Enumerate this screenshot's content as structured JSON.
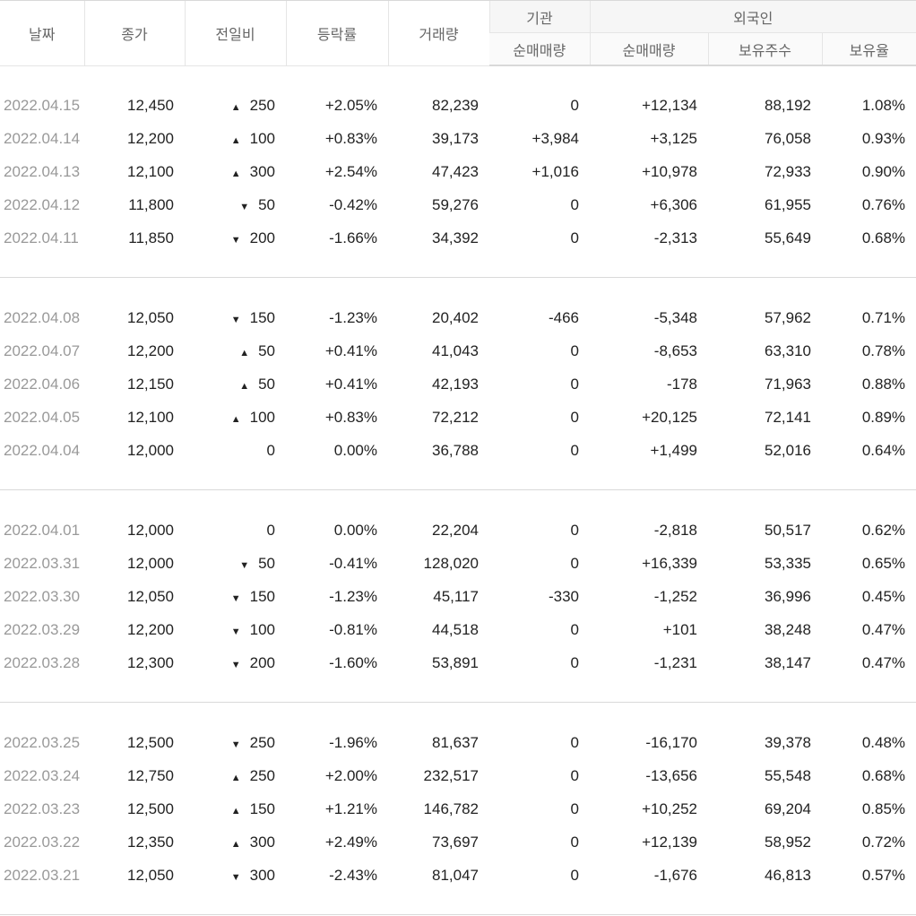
{
  "headers": {
    "date": "날짜",
    "close": "종가",
    "change": "전일비",
    "rate": "등락률",
    "volume": "거래량",
    "inst_group": "기관",
    "foreign_group": "외국인",
    "inst_net": "순매매량",
    "foreign_net": "순매매량",
    "foreign_holdings": "보유주수",
    "foreign_ratio": "보유율"
  },
  "colors": {
    "up": "#d0021b",
    "down": "#1c5fd1"
  },
  "groups": [
    {
      "rows": [
        {
          "date": "2022.04.15",
          "close": "12,450",
          "dir": "up",
          "change": "250",
          "rate": "+2.05%",
          "volume": "82,239",
          "inst": "0",
          "inst_dir": "flat",
          "foreign": "+12,134",
          "foreign_dir": "up",
          "holdings": "88,192",
          "ratio": "1.08%"
        },
        {
          "date": "2022.04.14",
          "close": "12,200",
          "dir": "up",
          "change": "100",
          "rate": "+0.83%",
          "volume": "39,173",
          "inst": "+3,984",
          "inst_dir": "up",
          "foreign": "+3,125",
          "foreign_dir": "up",
          "holdings": "76,058",
          "ratio": "0.93%"
        },
        {
          "date": "2022.04.13",
          "close": "12,100",
          "dir": "up",
          "change": "300",
          "rate": "+2.54%",
          "volume": "47,423",
          "inst": "+1,016",
          "inst_dir": "up",
          "foreign": "+10,978",
          "foreign_dir": "up",
          "holdings": "72,933",
          "ratio": "0.90%"
        },
        {
          "date": "2022.04.12",
          "close": "11,800",
          "dir": "down",
          "change": "50",
          "rate": "-0.42%",
          "volume": "59,276",
          "inst": "0",
          "inst_dir": "flat",
          "foreign": "+6,306",
          "foreign_dir": "up",
          "holdings": "61,955",
          "ratio": "0.76%"
        },
        {
          "date": "2022.04.11",
          "close": "11,850",
          "dir": "down",
          "change": "200",
          "rate": "-1.66%",
          "volume": "34,392",
          "inst": "0",
          "inst_dir": "flat",
          "foreign": "-2,313",
          "foreign_dir": "down",
          "holdings": "55,649",
          "ratio": "0.68%"
        }
      ]
    },
    {
      "rows": [
        {
          "date": "2022.04.08",
          "close": "12,050",
          "dir": "down",
          "change": "150",
          "rate": "-1.23%",
          "volume": "20,402",
          "inst": "-466",
          "inst_dir": "down",
          "foreign": "-5,348",
          "foreign_dir": "down",
          "holdings": "57,962",
          "ratio": "0.71%"
        },
        {
          "date": "2022.04.07",
          "close": "12,200",
          "dir": "up",
          "change": "50",
          "rate": "+0.41%",
          "volume": "41,043",
          "inst": "0",
          "inst_dir": "flat",
          "foreign": "-8,653",
          "foreign_dir": "down",
          "holdings": "63,310",
          "ratio": "0.78%"
        },
        {
          "date": "2022.04.06",
          "close": "12,150",
          "dir": "up",
          "change": "50",
          "rate": "+0.41%",
          "volume": "42,193",
          "inst": "0",
          "inst_dir": "flat",
          "foreign": "-178",
          "foreign_dir": "down",
          "holdings": "71,963",
          "ratio": "0.88%"
        },
        {
          "date": "2022.04.05",
          "close": "12,100",
          "dir": "up",
          "change": "100",
          "rate": "+0.83%",
          "volume": "72,212",
          "inst": "0",
          "inst_dir": "flat",
          "foreign": "+20,125",
          "foreign_dir": "up",
          "holdings": "72,141",
          "ratio": "0.89%"
        },
        {
          "date": "2022.04.04",
          "close": "12,000",
          "dir": "flat",
          "change": "0",
          "rate": "0.00%",
          "volume": "36,788",
          "inst": "0",
          "inst_dir": "flat",
          "foreign": "+1,499",
          "foreign_dir": "up",
          "holdings": "52,016",
          "ratio": "0.64%"
        }
      ]
    },
    {
      "rows": [
        {
          "date": "2022.04.01",
          "close": "12,000",
          "dir": "flat",
          "change": "0",
          "rate": "0.00%",
          "volume": "22,204",
          "inst": "0",
          "inst_dir": "flat",
          "foreign": "-2,818",
          "foreign_dir": "down",
          "holdings": "50,517",
          "ratio": "0.62%"
        },
        {
          "date": "2022.03.31",
          "close": "12,000",
          "dir": "down",
          "change": "50",
          "rate": "-0.41%",
          "volume": "128,020",
          "inst": "0",
          "inst_dir": "flat",
          "foreign": "+16,339",
          "foreign_dir": "up",
          "holdings": "53,335",
          "ratio": "0.65%"
        },
        {
          "date": "2022.03.30",
          "close": "12,050",
          "dir": "down",
          "change": "150",
          "rate": "-1.23%",
          "volume": "45,117",
          "inst": "-330",
          "inst_dir": "down",
          "foreign": "-1,252",
          "foreign_dir": "down",
          "holdings": "36,996",
          "ratio": "0.45%"
        },
        {
          "date": "2022.03.29",
          "close": "12,200",
          "dir": "down",
          "change": "100",
          "rate": "-0.81%",
          "volume": "44,518",
          "inst": "0",
          "inst_dir": "flat",
          "foreign": "+101",
          "foreign_dir": "up",
          "holdings": "38,248",
          "ratio": "0.47%"
        },
        {
          "date": "2022.03.28",
          "close": "12,300",
          "dir": "down",
          "change": "200",
          "rate": "-1.60%",
          "volume": "53,891",
          "inst": "0",
          "inst_dir": "flat",
          "foreign": "-1,231",
          "foreign_dir": "down",
          "holdings": "38,147",
          "ratio": "0.47%"
        }
      ]
    },
    {
      "rows": [
        {
          "date": "2022.03.25",
          "close": "12,500",
          "dir": "down",
          "change": "250",
          "rate": "-1.96%",
          "volume": "81,637",
          "inst": "0",
          "inst_dir": "flat",
          "foreign": "-16,170",
          "foreign_dir": "down",
          "holdings": "39,378",
          "ratio": "0.48%"
        },
        {
          "date": "2022.03.24",
          "close": "12,750",
          "dir": "up",
          "change": "250",
          "rate": "+2.00%",
          "volume": "232,517",
          "inst": "0",
          "inst_dir": "flat",
          "foreign": "-13,656",
          "foreign_dir": "down",
          "holdings": "55,548",
          "ratio": "0.68%"
        },
        {
          "date": "2022.03.23",
          "close": "12,500",
          "dir": "up",
          "change": "150",
          "rate": "+1.21%",
          "volume": "146,782",
          "inst": "0",
          "inst_dir": "flat",
          "foreign": "+10,252",
          "foreign_dir": "up",
          "holdings": "69,204",
          "ratio": "0.85%"
        },
        {
          "date": "2022.03.22",
          "close": "12,350",
          "dir": "up",
          "change": "300",
          "rate": "+2.49%",
          "volume": "73,697",
          "inst": "0",
          "inst_dir": "flat",
          "foreign": "+12,139",
          "foreign_dir": "up",
          "holdings": "58,952",
          "ratio": "0.72%"
        },
        {
          "date": "2022.03.21",
          "close": "12,050",
          "dir": "down",
          "change": "300",
          "rate": "-2.43%",
          "volume": "81,047",
          "inst": "0",
          "inst_dir": "flat",
          "foreign": "-1,676",
          "foreign_dir": "down",
          "holdings": "46,813",
          "ratio": "0.57%"
        }
      ]
    }
  ]
}
